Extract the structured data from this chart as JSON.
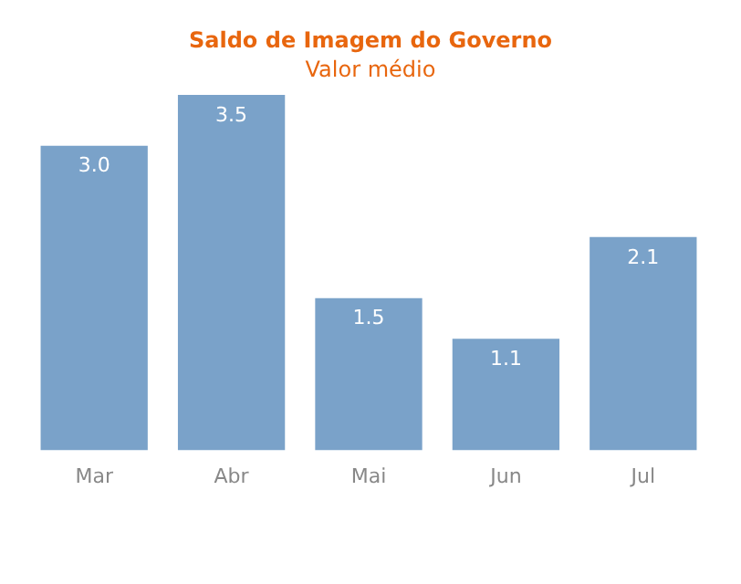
{
  "chart_data": {
    "type": "bar",
    "title": "Saldo de Imagem do Governo",
    "subtitle": "Valor médio",
    "categories": [
      "Mar",
      "Abr",
      "Mai",
      "Jun",
      "Jul"
    ],
    "values": [
      3.0,
      3.5,
      1.5,
      1.1,
      2.1
    ],
    "value_labels": [
      "3.0",
      "3.5",
      "1.5",
      "1.1",
      "2.1"
    ],
    "color": "#7aa2c9",
    "grid": false,
    "legend": false
  }
}
